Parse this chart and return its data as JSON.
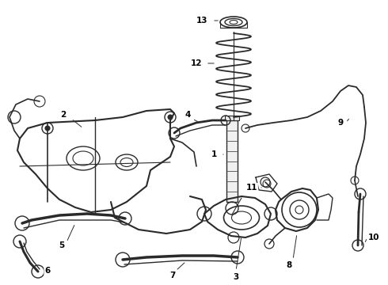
{
  "background_color": "#ffffff",
  "line_color": "#2a2a2a",
  "label_color": "#000000",
  "fig_width": 4.9,
  "fig_height": 3.6,
  "dpi": 100,
  "xlim": [
    0,
    490
  ],
  "ylim": [
    0,
    360
  ]
}
